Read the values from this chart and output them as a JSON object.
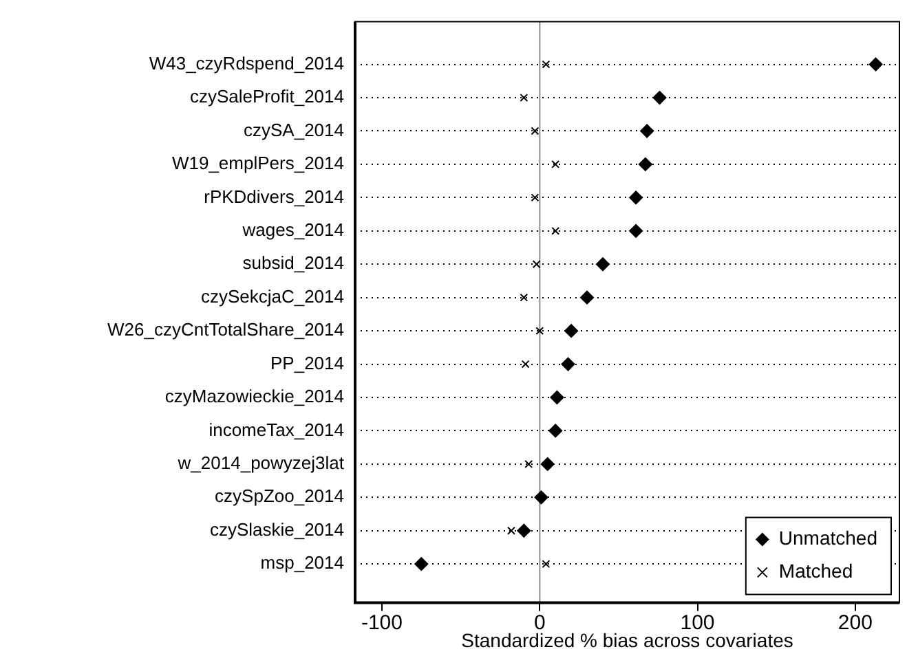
{
  "chart_data": {
    "type": "scatter",
    "orientation": "horizontal",
    "xlabel": "Standardized % bias across covariates",
    "categories": [
      "W43_czyRdspend_2014",
      "czySaleProfit_2014",
      "czySA_2014",
      "W19_emplPers_2014",
      "rPKDdivers_2014",
      "wages_2014",
      "subsid_2014",
      "czySekcjaC_2014",
      "W26_czyCntTotalShare_2014",
      "PP_2014",
      "czyMazowieckie_2014",
      "incomeTax_2014",
      "w_2014_powyzej3lat",
      "czySpZoo_2014",
      "czySlaskie_2014",
      "msp_2014"
    ],
    "series": [
      {
        "name": "Unmatched",
        "color": "#000000",
        "marker": "diamond",
        "values": [
          213,
          76,
          68,
          67,
          61,
          61,
          40,
          30,
          20,
          18,
          11,
          10,
          5,
          1,
          -10,
          -75
        ]
      },
      {
        "name": "Matched",
        "color": "#000000",
        "marker": "cross",
        "values": [
          4,
          -10,
          -3,
          10,
          -3,
          10,
          -2,
          -10,
          0,
          -9,
          null,
          null,
          -7,
          null,
          -18,
          4
        ]
      }
    ],
    "xlim": [
      -117,
      228
    ],
    "xticks": [
      -100,
      0,
      100,
      200
    ],
    "grid": "y",
    "legend": "bottom right",
    "ref_lines": [
      {
        "axis": "x",
        "value": 0,
        "color": "#a0a0a0"
      }
    ]
  }
}
